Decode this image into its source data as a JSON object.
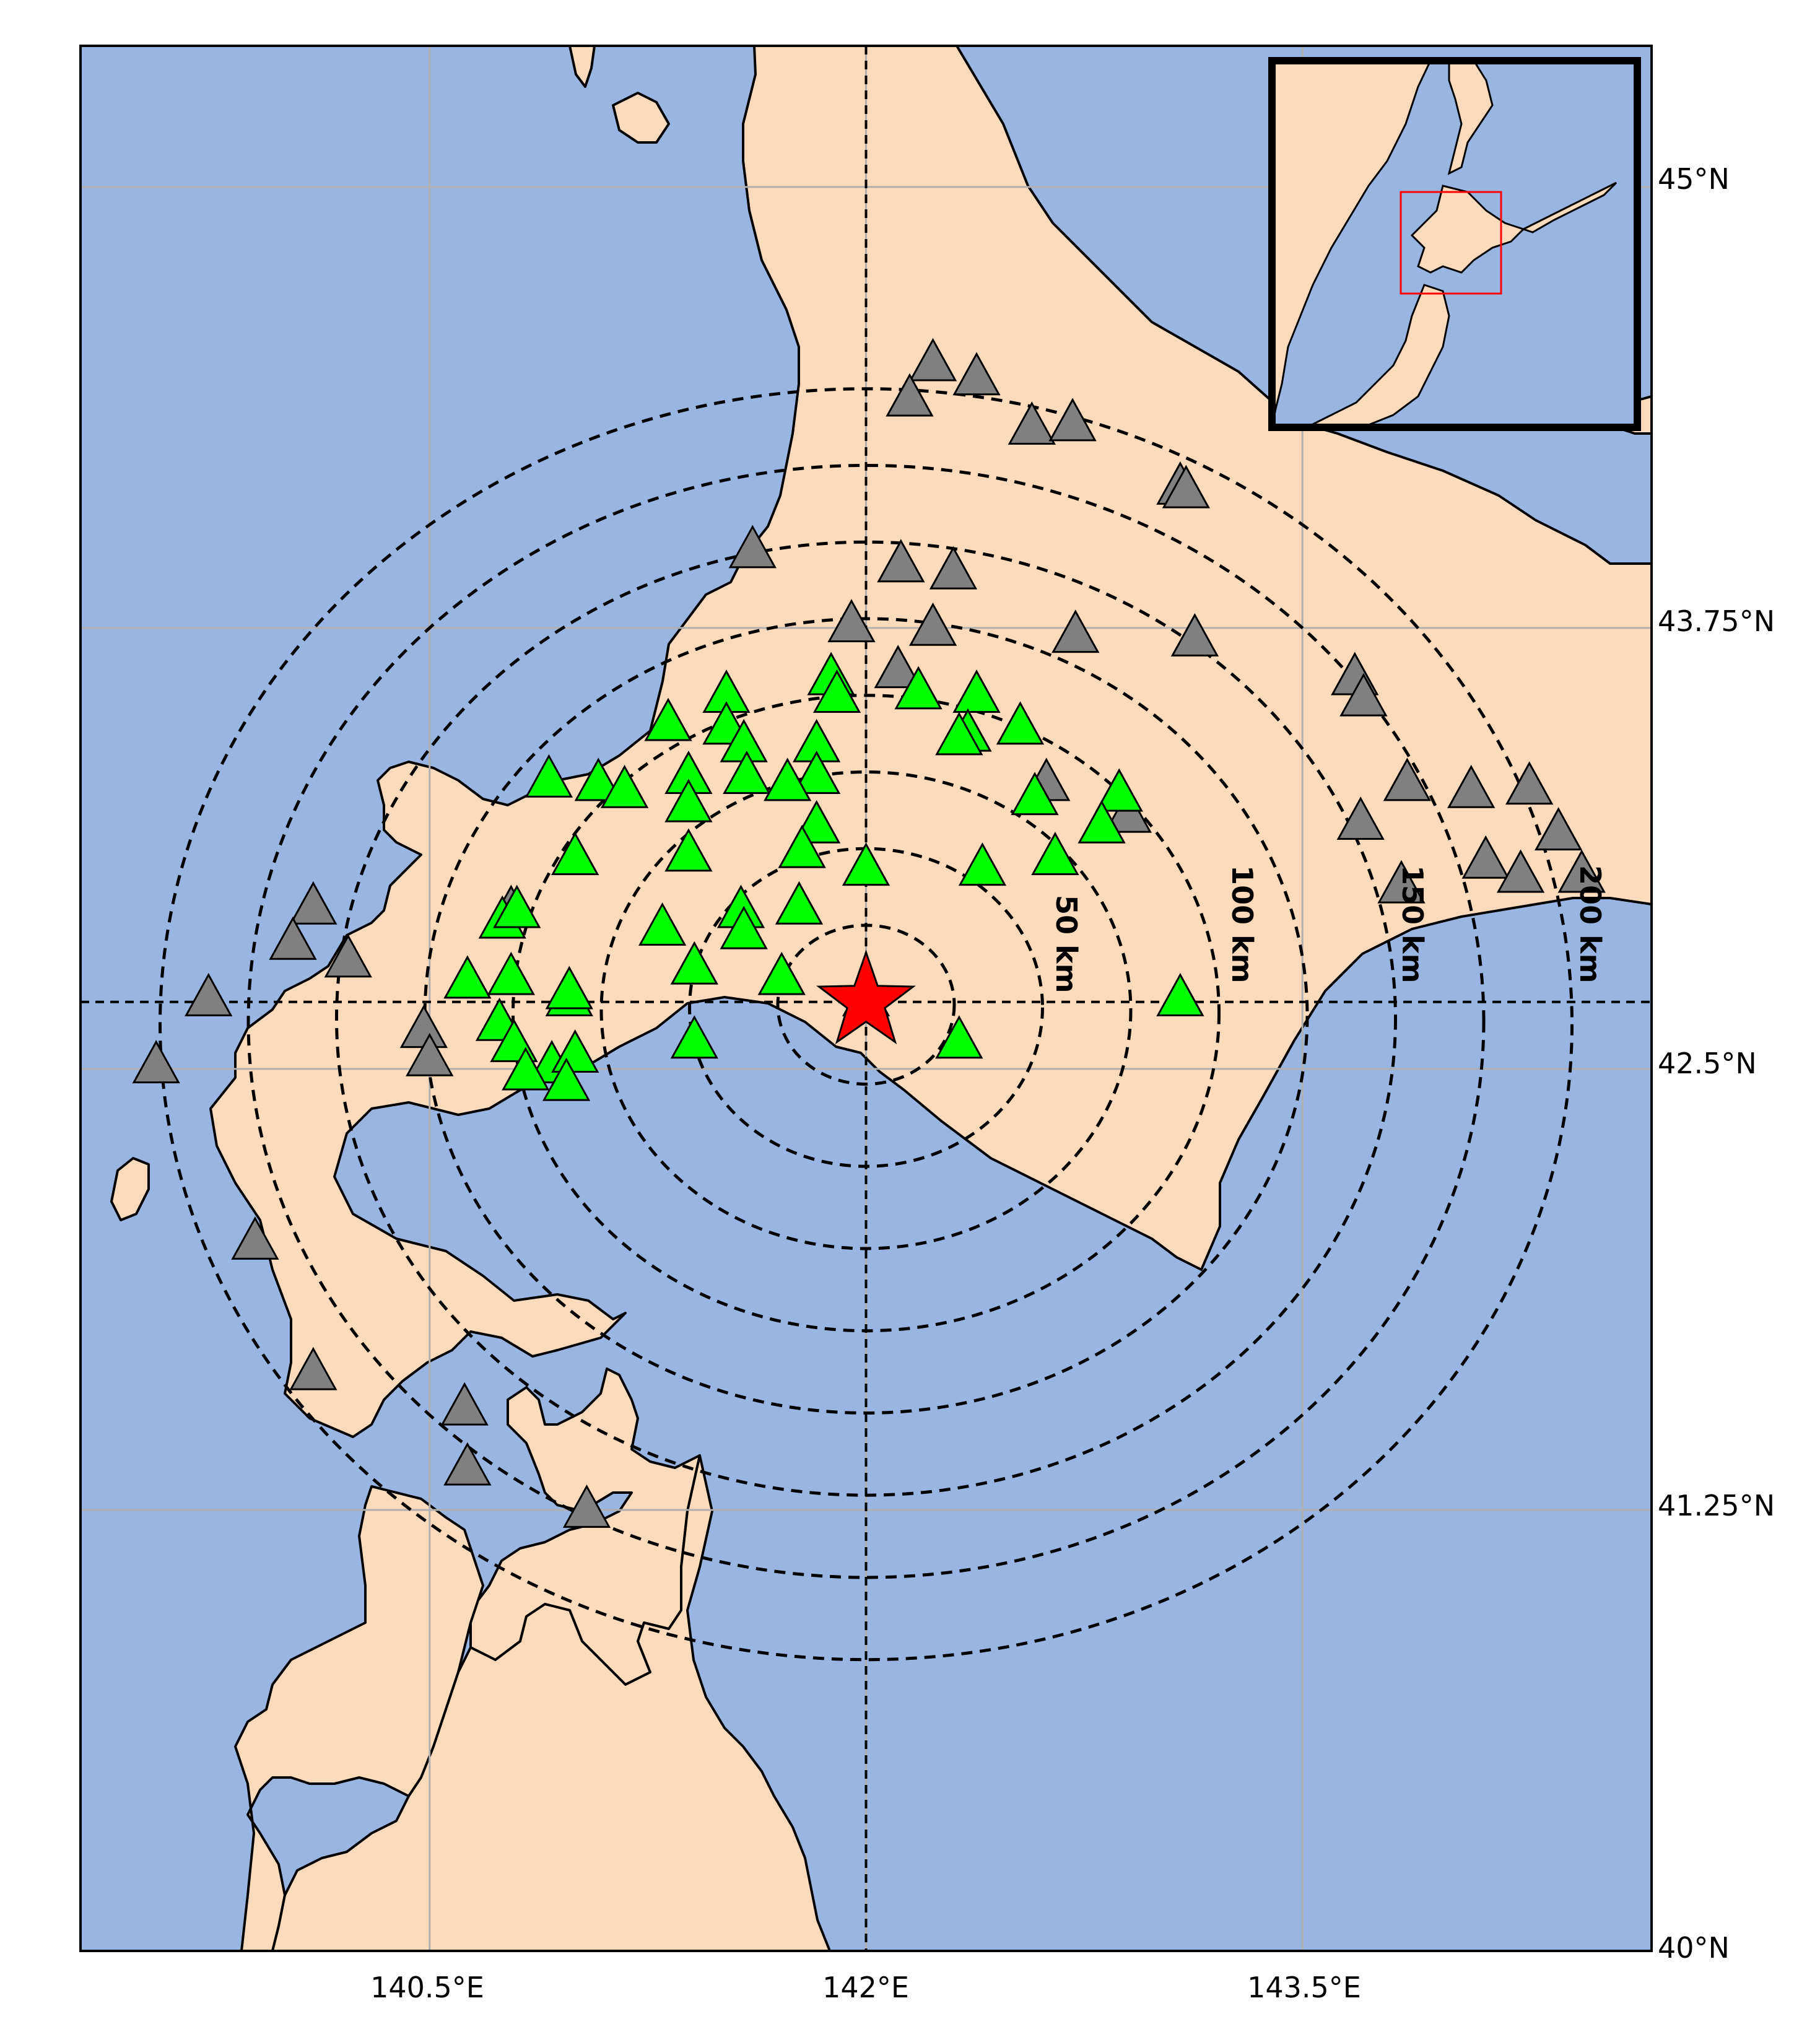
{
  "colors": {
    "ocean": "#99b6e2",
    "land": "#fcdabc",
    "coast": "#000000",
    "used_station": "#00ff00",
    "unused_station": "#808080",
    "epicenter": "#ff0000",
    "inset_box": "#ff0000",
    "gridline": "#b0b0b0"
  },
  "axes": {
    "lon_ticks": [
      "140.5°E",
      "142°E",
      "143.5°E"
    ],
    "lat_ticks": [
      "45°N",
      "43.75°N",
      "42.5°N",
      "41.25°N",
      "40°N"
    ]
  },
  "rings": {
    "labels": [
      "50 km",
      "100 km",
      "150 km",
      "200 km"
    ]
  },
  "legend_icons": {
    "epicenter": "star-icon",
    "used_station": "triangle-icon",
    "unused_station": "triangle-icon"
  },
  "map_data": {
    "extent": {
      "lon": [
        139.3,
        144.7
      ],
      "lat": [
        40.0,
        45.4
      ]
    },
    "epicenter": {
      "lon": 142.0,
      "lat": 42.69
    },
    "ring_distances_km": [
      50,
      100,
      150,
      200,
      250,
      300,
      350,
      400
    ],
    "used_stations": [
      [
        141.52,
        43.56
      ],
      [
        141.88,
        43.61
      ],
      [
        141.9,
        43.56
      ],
      [
        142.18,
        43.57
      ],
      [
        142.38,
        43.56
      ],
      [
        141.32,
        43.48
      ],
      [
        141.52,
        43.47
      ],
      [
        141.58,
        43.42
      ],
      [
        141.83,
        43.42
      ],
      [
        142.35,
        43.45
      ],
      [
        142.53,
        43.47
      ],
      [
        142.32,
        43.44
      ],
      [
        141.39,
        43.33
      ],
      [
        141.59,
        43.33
      ],
      [
        141.83,
        43.33
      ],
      [
        141.73,
        43.31
      ],
      [
        141.08,
        43.31
      ],
      [
        141.17,
        43.29
      ],
      [
        140.91,
        43.32
      ],
      [
        141.39,
        43.25
      ],
      [
        142.58,
        43.27
      ],
      [
        142.87,
        43.28
      ],
      [
        142.81,
        43.19
      ],
      [
        141.83,
        43.19
      ],
      [
        141.78,
        43.12
      ],
      [
        141.39,
        43.11
      ],
      [
        141.0,
        43.1
      ],
      [
        142.0,
        43.07
      ],
      [
        142.4,
        43.07
      ],
      [
        142.65,
        43.1
      ],
      [
        141.57,
        42.95
      ],
      [
        141.77,
        42.96
      ],
      [
        140.75,
        42.92
      ],
      [
        140.8,
        42.95
      ],
      [
        141.3,
        42.9
      ],
      [
        141.58,
        42.89
      ],
      [
        142.0,
        42.7
      ],
      [
        141.71,
        42.76
      ],
      [
        140.63,
        42.75
      ],
      [
        140.78,
        42.76
      ],
      [
        140.98,
        42.7
      ],
      [
        140.98,
        42.72
      ],
      [
        140.74,
        42.63
      ],
      [
        141.41,
        42.58
      ],
      [
        142.32,
        42.58
      ],
      [
        143.08,
        42.7
      ],
      [
        141.41,
        42.79
      ],
      [
        140.79,
        42.57
      ],
      [
        140.92,
        42.51
      ],
      [
        141.0,
        42.54
      ],
      [
        140.97,
        42.46
      ],
      [
        140.83,
        42.49
      ]
    ],
    "unused_stations": [
      [
        142.23,
        44.5
      ],
      [
        142.38,
        44.46
      ],
      [
        142.15,
        44.4
      ],
      [
        142.57,
        44.32
      ],
      [
        142.71,
        44.33
      ],
      [
        143.08,
        44.15
      ],
      [
        143.1,
        44.14
      ],
      [
        141.61,
        43.97
      ],
      [
        142.12,
        43.93
      ],
      [
        142.3,
        43.91
      ],
      [
        141.95,
        43.76
      ],
      [
        142.23,
        43.75
      ],
      [
        142.72,
        43.73
      ],
      [
        143.13,
        43.72
      ],
      [
        142.11,
        43.63
      ],
      [
        143.68,
        43.61
      ],
      [
        143.71,
        43.55
      ],
      [
        142.62,
        43.31
      ],
      [
        143.86,
        43.31
      ],
      [
        144.08,
        43.29
      ],
      [
        144.28,
        43.3
      ],
      [
        142.9,
        43.22
      ],
      [
        143.7,
        43.2
      ],
      [
        144.38,
        43.17
      ],
      [
        144.13,
        43.09
      ],
      [
        143.84,
        43.02
      ],
      [
        144.25,
        43.05
      ],
      [
        144.46,
        43.05
      ],
      [
        140.1,
        42.96
      ],
      [
        140.78,
        42.95
      ],
      [
        140.03,
        42.86
      ],
      [
        140.22,
        42.81
      ],
      [
        140.48,
        42.61
      ],
      [
        139.74,
        42.7
      ],
      [
        140.5,
        42.53
      ],
      [
        139.56,
        42.51
      ],
      [
        139.9,
        42.01
      ],
      [
        140.1,
        41.64
      ],
      [
        140.62,
        41.54
      ],
      [
        140.63,
        41.37
      ],
      [
        141.04,
        41.25
      ]
    ]
  }
}
